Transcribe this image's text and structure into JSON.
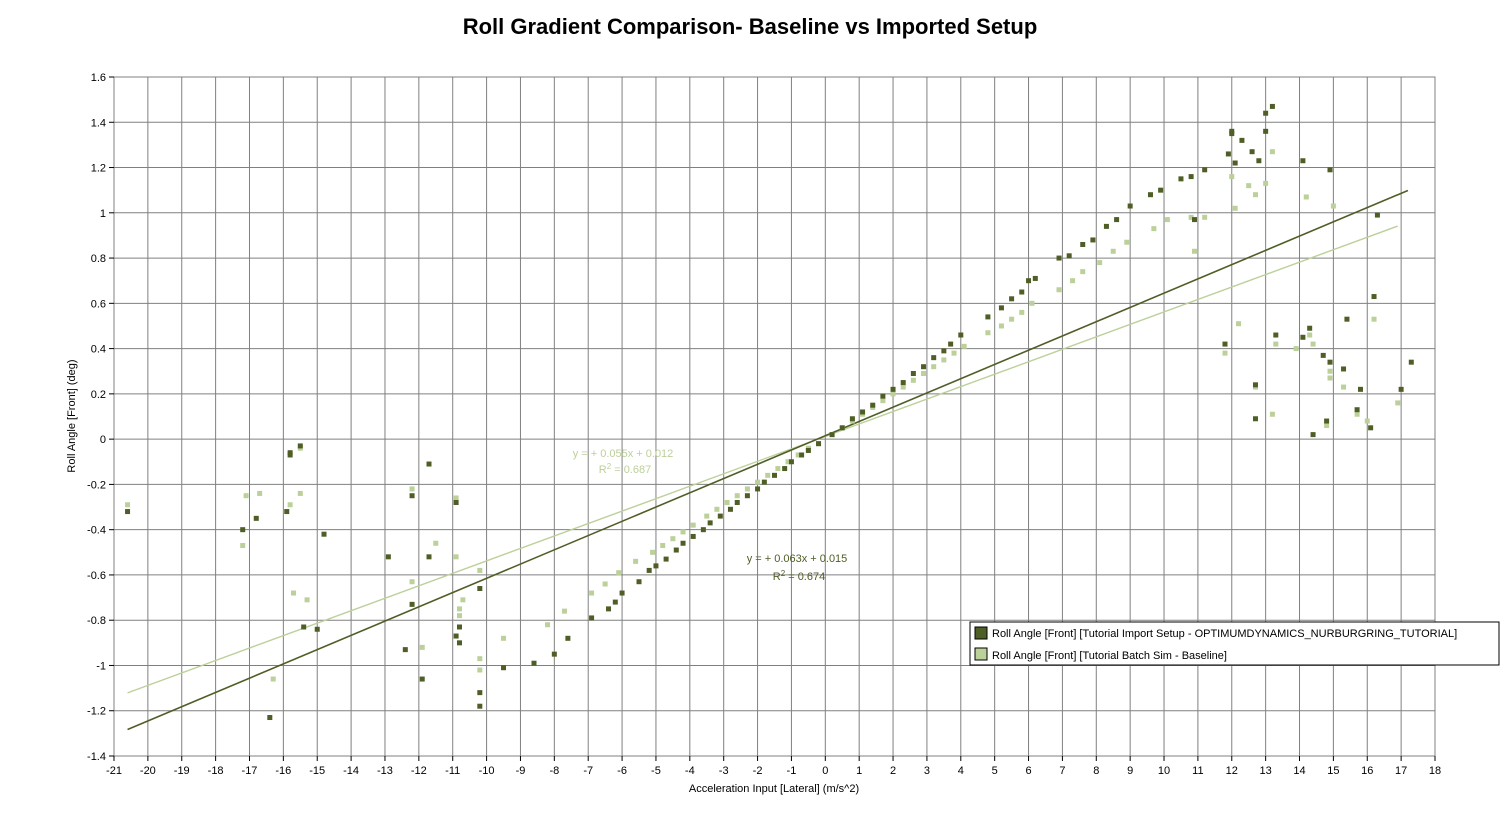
{
  "chart_data": {
    "type": "scatter",
    "title": "Roll Gradient Comparison- Baseline vs Imported Setup",
    "xlabel": "Acceleration Input [Lateral] (m/s^2)",
    "ylabel": "Roll Angle [Front] (deg)",
    "xlim": [
      -21,
      18
    ],
    "ylim": [
      -1.4,
      1.6
    ],
    "x_ticks": [
      "-21",
      "-20",
      "-19",
      "-18",
      "-17",
      "-16",
      "-15",
      "-14",
      "-13",
      "-12",
      "-11",
      "-10",
      "-9",
      "-8",
      "-7",
      "-6",
      "-5",
      "-4",
      "-3",
      "-2",
      "-1",
      "0",
      "1",
      "2",
      "3",
      "4",
      "5",
      "6",
      "7",
      "8",
      "9",
      "10",
      "11",
      "12",
      "13",
      "14",
      "15",
      "16",
      "17",
      "18"
    ],
    "y_ticks": [
      "-1.4",
      "-1.2",
      "-1",
      "-0.8",
      "-0.6",
      "-0.4",
      "-0.2",
      "0",
      "0.2",
      "0.4",
      "0.6",
      "0.8",
      "1",
      "1.2",
      "1.4",
      "1.6"
    ],
    "grid": true,
    "legend_position": "bottom-right",
    "series": [
      {
        "name": "Roll Angle [Front] [Tutorial Import Setup - OPTIMUMDYNAMICS_NURBURGRING_TUTORIAL]",
        "color": "#4f5e26",
        "trend": {
          "slope": 0.063,
          "intercept": 0.015,
          "x_range": [
            -20.6,
            17.2
          ],
          "eq_line1": "y =  + 0.063x + 0.015",
          "eq_r2_prefix": "R",
          "eq_r2_exp": "2",
          "eq_r2_value": " = 0.674"
        },
        "points": [
          [
            -20.6,
            -0.32
          ],
          [
            -17.2,
            -0.4
          ],
          [
            -16.8,
            -0.35
          ],
          [
            -16.4,
            -1.23
          ],
          [
            -15.9,
            -0.32
          ],
          [
            -15.8,
            -0.06
          ],
          [
            -15.8,
            -0.07
          ],
          [
            -15.5,
            -0.03
          ],
          [
            -15.4,
            -0.83
          ],
          [
            -15.0,
            -0.84
          ],
          [
            -14.8,
            -0.42
          ],
          [
            -12.9,
            -0.52
          ],
          [
            -12.4,
            -0.93
          ],
          [
            -12.2,
            -0.25
          ],
          [
            -12.2,
            -0.73
          ],
          [
            -11.9,
            -1.06
          ],
          [
            -11.7,
            -0.11
          ],
          [
            -11.7,
            -0.52
          ],
          [
            -10.9,
            -0.28
          ],
          [
            -10.9,
            -0.87
          ],
          [
            -10.8,
            -0.83
          ],
          [
            -10.8,
            -0.9
          ],
          [
            -10.2,
            -1.12
          ],
          [
            -10.2,
            -1.18
          ],
          [
            -10.2,
            -0.66
          ],
          [
            -9.5,
            -1.01
          ],
          [
            -8.6,
            -0.99
          ],
          [
            -8.0,
            -0.95
          ],
          [
            -7.6,
            -0.88
          ],
          [
            -6.9,
            -0.79
          ],
          [
            -6.4,
            -0.75
          ],
          [
            -6.2,
            -0.72
          ],
          [
            -6.0,
            -0.68
          ],
          [
            -5.5,
            -0.63
          ],
          [
            -5.2,
            -0.58
          ],
          [
            -5.0,
            -0.56
          ],
          [
            -4.7,
            -0.53
          ],
          [
            -4.4,
            -0.49
          ],
          [
            -4.2,
            -0.46
          ],
          [
            -3.9,
            -0.43
          ],
          [
            -3.6,
            -0.4
          ],
          [
            -3.4,
            -0.37
          ],
          [
            -3.1,
            -0.34
          ],
          [
            -2.8,
            -0.31
          ],
          [
            -2.6,
            -0.28
          ],
          [
            -2.3,
            -0.25
          ],
          [
            -2.0,
            -0.22
          ],
          [
            -1.8,
            -0.19
          ],
          [
            -1.5,
            -0.16
          ],
          [
            -1.2,
            -0.13
          ],
          [
            -1.0,
            -0.1
          ],
          [
            -0.7,
            -0.07
          ],
          [
            -0.5,
            -0.05
          ],
          [
            -0.2,
            -0.02
          ],
          [
            0.2,
            0.02
          ],
          [
            0.5,
            0.05
          ],
          [
            0.8,
            0.09
          ],
          [
            1.1,
            0.12
          ],
          [
            1.4,
            0.15
          ],
          [
            1.7,
            0.19
          ],
          [
            2.0,
            0.22
          ],
          [
            2.3,
            0.25
          ],
          [
            2.6,
            0.29
          ],
          [
            2.9,
            0.32
          ],
          [
            3.2,
            0.36
          ],
          [
            3.5,
            0.39
          ],
          [
            3.7,
            0.42
          ],
          [
            4.0,
            0.46
          ],
          [
            4.8,
            0.54
          ],
          [
            5.2,
            0.58
          ],
          [
            5.5,
            0.62
          ],
          [
            5.8,
            0.65
          ],
          [
            6.0,
            0.7
          ],
          [
            6.2,
            0.71
          ],
          [
            6.9,
            0.8
          ],
          [
            7.2,
            0.81
          ],
          [
            7.6,
            0.86
          ],
          [
            7.9,
            0.88
          ],
          [
            8.3,
            0.94
          ],
          [
            8.6,
            0.97
          ],
          [
            9.0,
            1.03
          ],
          [
            9.6,
            1.08
          ],
          [
            9.9,
            1.1
          ],
          [
            10.5,
            1.15
          ],
          [
            10.8,
            1.16
          ],
          [
            10.9,
            0.97
          ],
          [
            11.2,
            1.19
          ],
          [
            11.8,
            0.42
          ],
          [
            11.9,
            1.26
          ],
          [
            12.0,
            1.35
          ],
          [
            12.0,
            1.36
          ],
          [
            12.1,
            1.22
          ],
          [
            12.3,
            1.32
          ],
          [
            12.6,
            1.27
          ],
          [
            12.7,
            0.24
          ],
          [
            12.7,
            0.09
          ],
          [
            12.8,
            1.23
          ],
          [
            13.0,
            1.36
          ],
          [
            13.0,
            1.44
          ],
          [
            13.2,
            1.47
          ],
          [
            13.3,
            0.46
          ],
          [
            14.1,
            0.45
          ],
          [
            14.1,
            1.23
          ],
          [
            14.4,
            0.02
          ],
          [
            14.3,
            0.49
          ],
          [
            14.7,
            0.37
          ],
          [
            14.8,
            0.08
          ],
          [
            14.9,
            0.34
          ],
          [
            14.9,
            1.19
          ],
          [
            15.3,
            0.31
          ],
          [
            15.4,
            0.53
          ],
          [
            15.7,
            0.13
          ],
          [
            15.8,
            0.22
          ],
          [
            16.1,
            0.05
          ],
          [
            16.2,
            0.63
          ],
          [
            16.3,
            0.99
          ],
          [
            17.0,
            0.22
          ],
          [
            17.3,
            0.34
          ]
        ]
      },
      {
        "name": "Roll Angle [Front] [Tutorial Batch Sim - Baseline]",
        "color": "#bcd09a",
        "trend": {
          "slope": 0.055,
          "intercept": 0.012,
          "x_range": [
            -20.6,
            16.9
          ],
          "eq_line1": "y =  + 0.055x + 0.012",
          "eq_r2_prefix": "R",
          "eq_r2_exp": "2",
          "eq_r2_value": " = 0.687"
        },
        "points": [
          [
            -20.6,
            -0.29
          ],
          [
            -17.2,
            -0.47
          ],
          [
            -17.1,
            -0.25
          ],
          [
            -16.7,
            -0.24
          ],
          [
            -16.3,
            -1.06
          ],
          [
            -15.8,
            -0.29
          ],
          [
            -15.7,
            -0.68
          ],
          [
            -15.5,
            -0.04
          ],
          [
            -15.5,
            -0.24
          ],
          [
            -15.3,
            -0.71
          ],
          [
            -12.2,
            -0.22
          ],
          [
            -12.2,
            -0.63
          ],
          [
            -11.9,
            -0.92
          ],
          [
            -11.5,
            -0.46
          ],
          [
            -10.9,
            -0.26
          ],
          [
            -10.9,
            -0.52
          ],
          [
            -10.8,
            -0.78
          ],
          [
            -10.8,
            -0.75
          ],
          [
            -10.7,
            -0.71
          ],
          [
            -10.2,
            -0.58
          ],
          [
            -10.2,
            -0.97
          ],
          [
            -10.2,
            -1.02
          ],
          [
            -9.5,
            -0.88
          ],
          [
            -8.2,
            -0.82
          ],
          [
            -7.7,
            -0.76
          ],
          [
            -6.9,
            -0.68
          ],
          [
            -6.5,
            -0.64
          ],
          [
            -6.1,
            -0.59
          ],
          [
            -5.6,
            -0.54
          ],
          [
            -5.1,
            -0.5
          ],
          [
            -4.8,
            -0.47
          ],
          [
            -4.5,
            -0.44
          ],
          [
            -4.2,
            -0.41
          ],
          [
            -3.9,
            -0.38
          ],
          [
            -3.5,
            -0.34
          ],
          [
            -3.2,
            -0.31
          ],
          [
            -2.9,
            -0.28
          ],
          [
            -2.6,
            -0.25
          ],
          [
            -2.3,
            -0.22
          ],
          [
            -2.0,
            -0.19
          ],
          [
            -1.7,
            -0.16
          ],
          [
            -1.4,
            -0.13
          ],
          [
            -1.1,
            -0.1
          ],
          [
            -0.8,
            -0.07
          ],
          [
            -0.5,
            -0.04
          ],
          [
            -0.2,
            -0.02
          ],
          [
            0.2,
            0.02
          ],
          [
            0.5,
            0.05
          ],
          [
            0.8,
            0.08
          ],
          [
            1.1,
            0.11
          ],
          [
            1.4,
            0.14
          ],
          [
            1.7,
            0.17
          ],
          [
            2.0,
            0.2
          ],
          [
            2.3,
            0.23
          ],
          [
            2.6,
            0.26
          ],
          [
            2.9,
            0.29
          ],
          [
            3.2,
            0.32
          ],
          [
            3.5,
            0.35
          ],
          [
            3.8,
            0.38
          ],
          [
            4.1,
            0.41
          ],
          [
            4.8,
            0.47
          ],
          [
            5.2,
            0.5
          ],
          [
            5.5,
            0.53
          ],
          [
            5.8,
            0.56
          ],
          [
            6.1,
            0.6
          ],
          [
            6.9,
            0.66
          ],
          [
            7.3,
            0.7
          ],
          [
            7.6,
            0.74
          ],
          [
            8.1,
            0.78
          ],
          [
            8.5,
            0.83
          ],
          [
            8.9,
            0.87
          ],
          [
            9.7,
            0.93
          ],
          [
            10.1,
            0.97
          ],
          [
            10.8,
            0.98
          ],
          [
            10.9,
            0.83
          ],
          [
            11.2,
            0.98
          ],
          [
            11.8,
            0.38
          ],
          [
            12.0,
            1.16
          ],
          [
            12.1,
            1.02
          ],
          [
            12.2,
            0.51
          ],
          [
            12.5,
            1.12
          ],
          [
            12.7,
            1.08
          ],
          [
            12.7,
            0.23
          ],
          [
            13.0,
            1.13
          ],
          [
            13.2,
            0.11
          ],
          [
            13.2,
            1.27
          ],
          [
            13.3,
            0.42
          ],
          [
            13.9,
            0.4
          ],
          [
            14.2,
            1.07
          ],
          [
            14.3,
            0.46
          ],
          [
            14.4,
            0.42
          ],
          [
            14.8,
            0.06
          ],
          [
            14.9,
            0.27
          ],
          [
            14.9,
            0.3
          ],
          [
            15.0,
            1.03
          ],
          [
            15.3,
            0.23
          ],
          [
            15.7,
            0.11
          ],
          [
            16.0,
            0.08
          ],
          [
            16.2,
            0.53
          ],
          [
            16.9,
            0.16
          ]
        ]
      }
    ]
  }
}
